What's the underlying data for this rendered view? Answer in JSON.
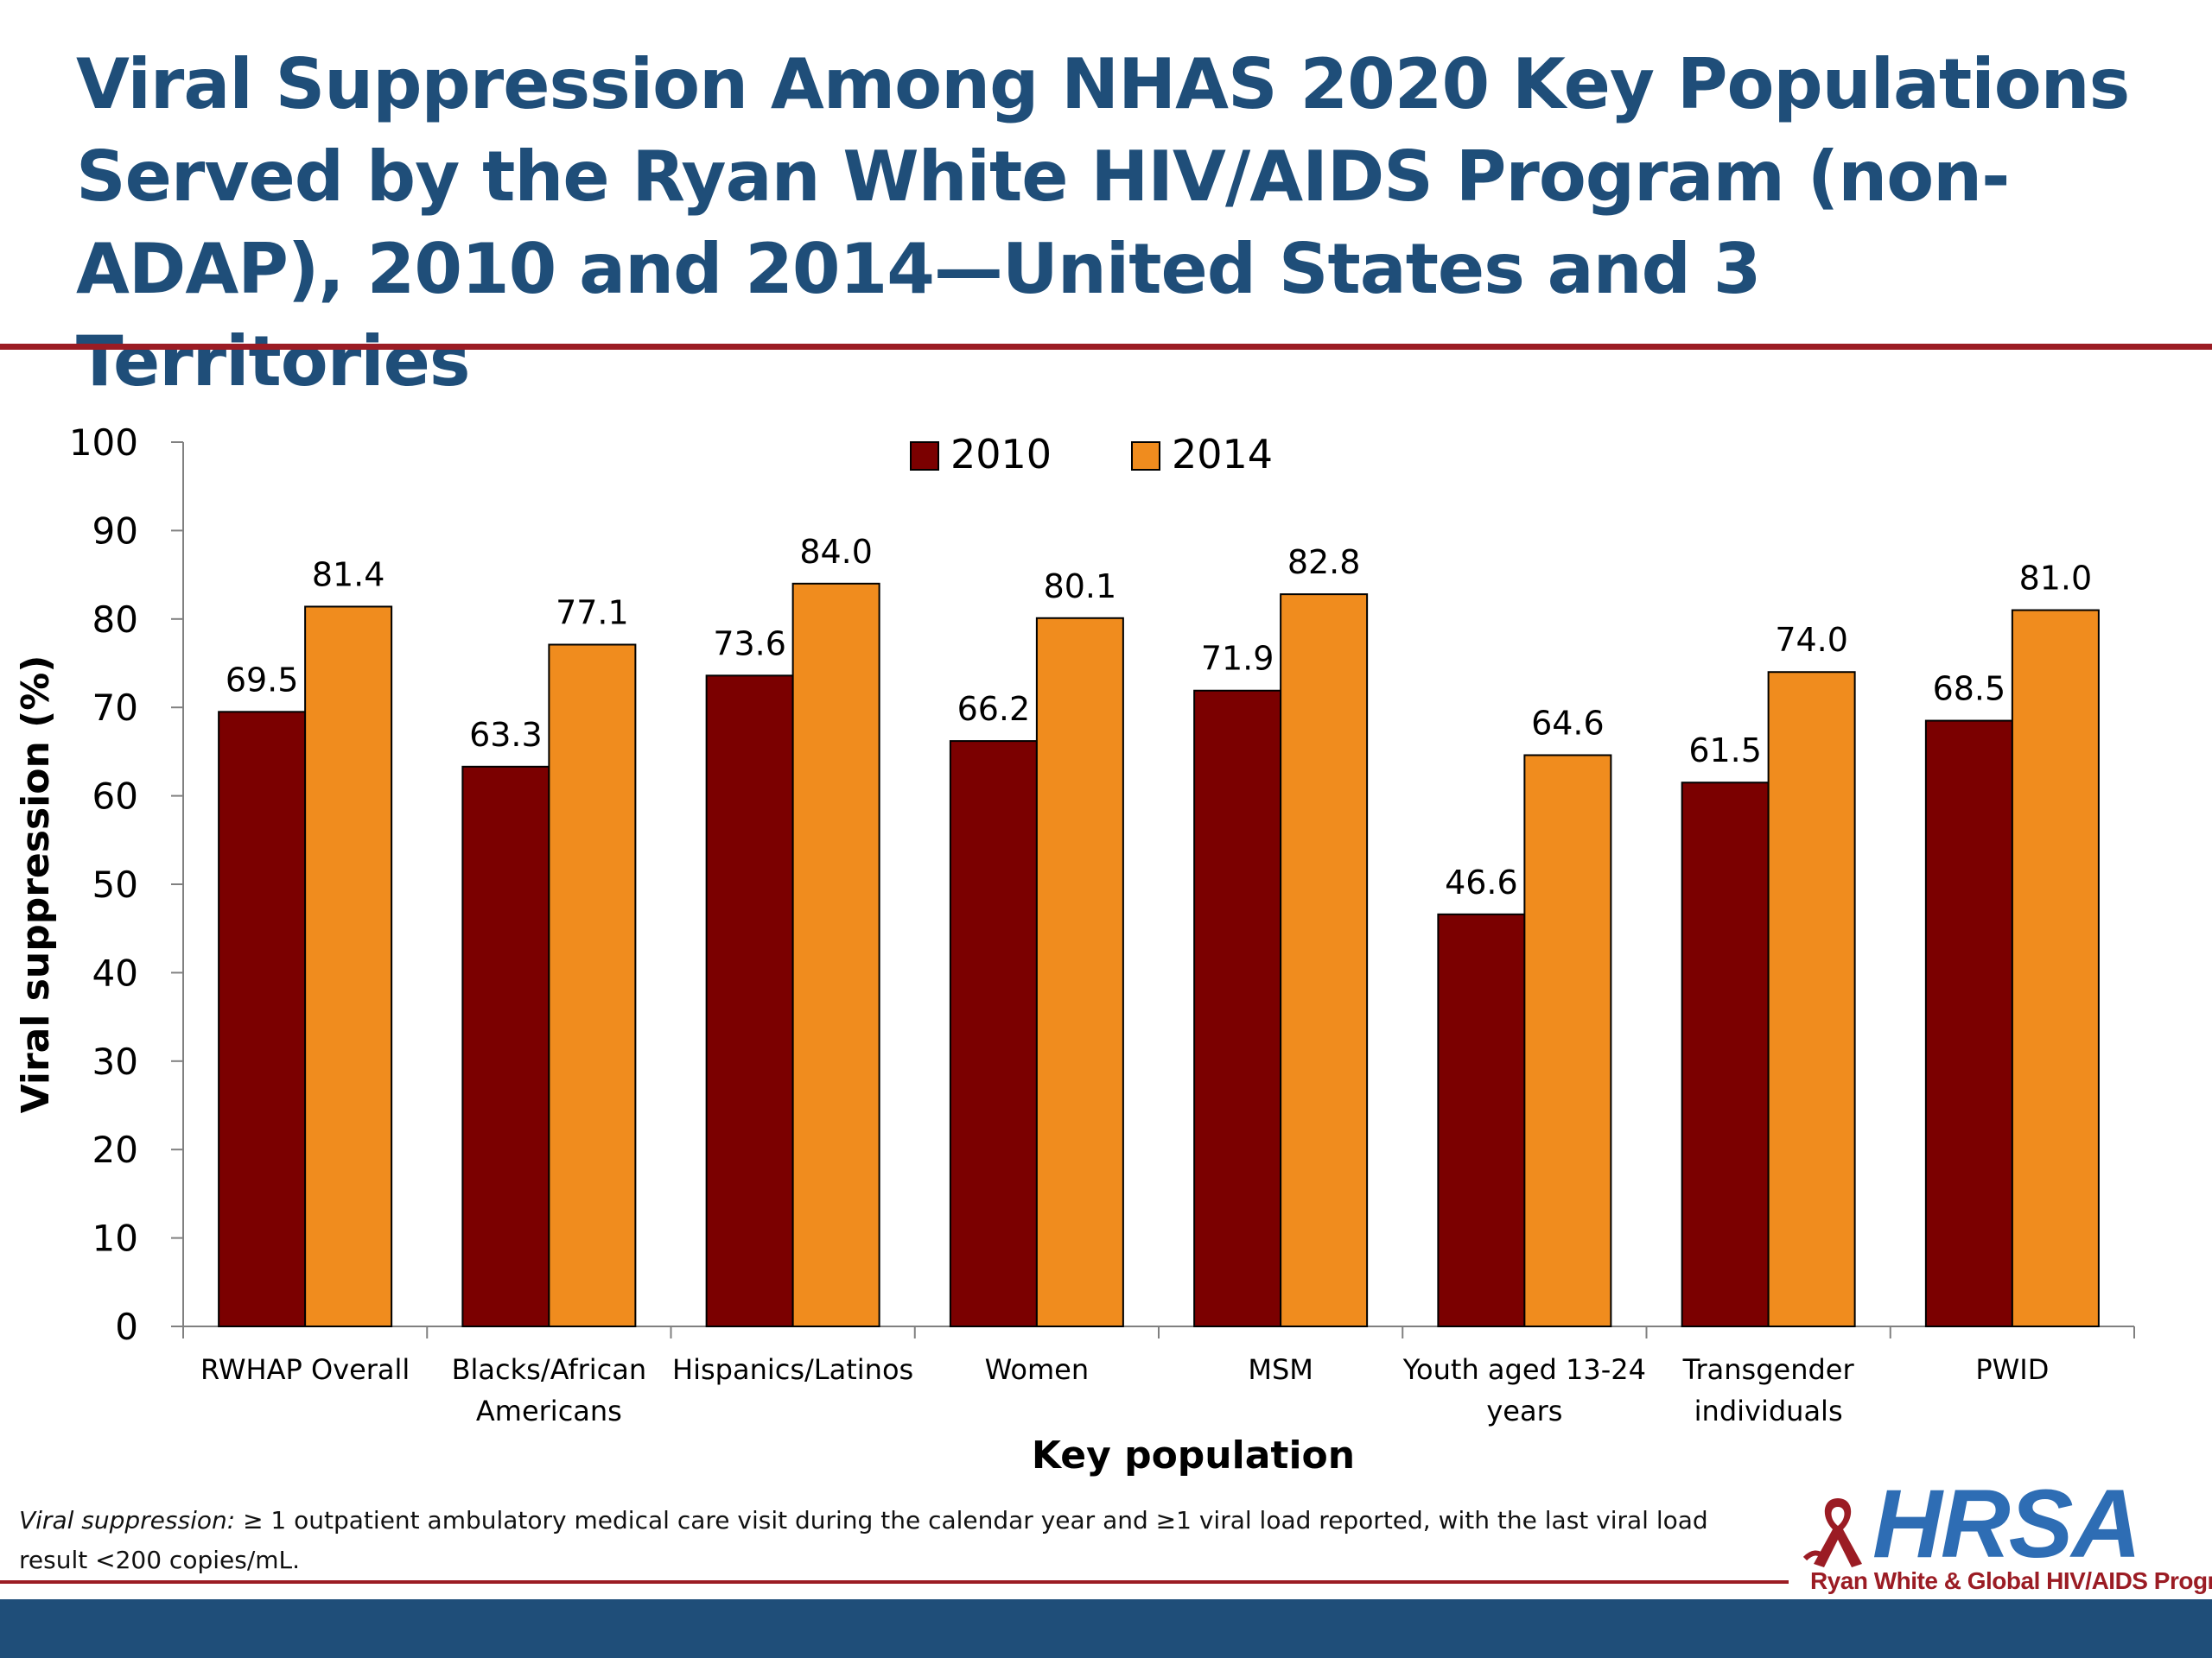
{
  "title": "Viral Suppression Among NHAS 2020 Key Populations Served by the Ryan White HIV/AIDS Program (non-ADAP), 2010 and 2014—United States and 3 Territories",
  "footnote": {
    "term": "Viral suppression:",
    "text": " ≥ 1 outpatient ambulatory medical care visit during the calendar year and ≥1 viral load reported, with the last  viral load result <200 copies/mL."
  },
  "logo": {
    "name": "HRSA",
    "subtitle": "Ryan White & Global HIV/AIDS Programs"
  },
  "colors": {
    "series_2010": "#7b0000",
    "series_2014": "#f08c1e",
    "title": "#1f4e79",
    "rule": "#9b1c24"
  },
  "chart_data": {
    "type": "bar",
    "title": "",
    "xlabel": "Key population",
    "ylabel": "Viral suppression (%)",
    "ylim": [
      0,
      100
    ],
    "yticks": [
      0,
      10,
      20,
      30,
      40,
      50,
      60,
      70,
      80,
      90,
      100
    ],
    "grid": false,
    "legend_position": "top-center",
    "categories": [
      [
        "RWHAP Overall"
      ],
      [
        "Blacks/African",
        "Americans"
      ],
      [
        "Hispanics/Latinos"
      ],
      [
        "Women"
      ],
      [
        "MSM"
      ],
      [
        "Youth aged 13-24",
        "years"
      ],
      [
        "Transgender",
        "individuals"
      ],
      [
        "PWID"
      ]
    ],
    "series": [
      {
        "name": "2010",
        "values": [
          69.5,
          63.3,
          73.6,
          66.2,
          71.9,
          46.6,
          61.5,
          68.5
        ]
      },
      {
        "name": "2014",
        "values": [
          81.4,
          77.1,
          84.0,
          80.1,
          82.8,
          64.6,
          74.0,
          81.0
        ]
      }
    ]
  }
}
